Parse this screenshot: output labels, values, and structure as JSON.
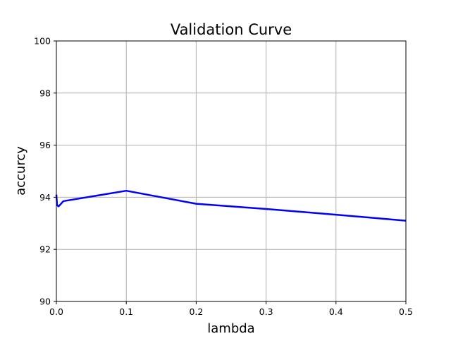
{
  "chart_data": {
    "type": "line",
    "title": "Validation Curve",
    "xlabel": "lambda",
    "ylabel": "accurcy",
    "xlim": [
      0.0,
      0.5
    ],
    "ylim": [
      90,
      100
    ],
    "grid": true,
    "x_ticks": [
      "0.0",
      "0.1",
      "0.2",
      "0.3",
      "0.4",
      "0.5"
    ],
    "y_ticks": [
      "90",
      "92",
      "94",
      "96",
      "98",
      "100"
    ],
    "series": [
      {
        "color": "#0000ff",
        "x": [
          0.0,
          0.001,
          0.003,
          0.005,
          0.01,
          0.1,
          0.2,
          0.3,
          0.4,
          0.5
        ],
        "y": [
          94.1,
          93.7,
          93.65,
          93.7,
          93.85,
          94.25,
          93.75,
          93.55,
          93.33,
          93.1
        ]
      }
    ]
  }
}
